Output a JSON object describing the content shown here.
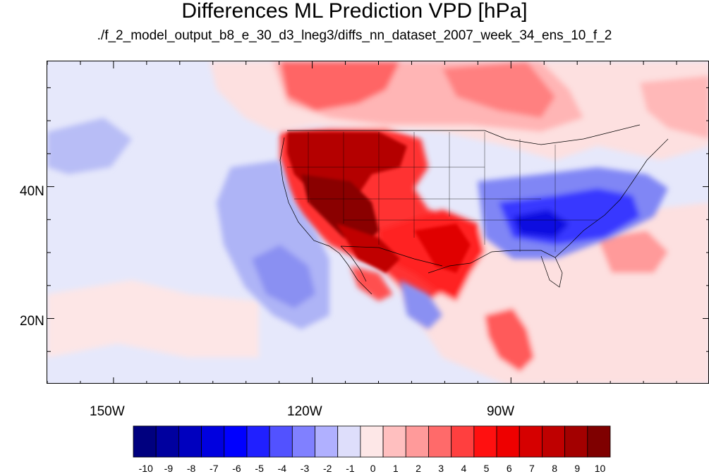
{
  "title": "Differences ML Prediction VPD [hPa]",
  "subtitle": "./f_2_model_output_b8_e_30_d3_lneg3/diffs_nn_dataset_2007_week_34_ens_10_f_2",
  "lat_labels": [
    "40N",
    "20N"
  ],
  "lon_labels": [
    "150W",
    "120W",
    "90W"
  ],
  "colorbar": {
    "tick_labels": [
      "-10",
      "-9",
      "-8",
      "-7",
      "-6",
      "-5",
      "-4",
      "-3",
      "-2",
      "-1",
      "0",
      "1",
      "2",
      "3",
      "4",
      "5",
      "6",
      "7",
      "8",
      "9",
      "10"
    ],
    "colors": [
      "#00007f",
      "#00009f",
      "#0000bf",
      "#0000df",
      "#0000ff",
      "#2020ff",
      "#5252ff",
      "#8080ff",
      "#b0b0ff",
      "#dedefb",
      "#fde7e7",
      "#ffbfbf",
      "#ff9a9a",
      "#ff6a6a",
      "#ff3f3f",
      "#ff1010",
      "#ee0000",
      "#d60000",
      "#bf0000",
      "#a30000",
      "#7f0000"
    ]
  },
  "chart_data": {
    "type": "heatmap",
    "title": "Differences ML Prediction VPD [hPa]",
    "subtitle": "./f_2_model_output_b8_e_30_d3_lneg3/diffs_nn_dataset_2007_week_34_ens_10_f_2",
    "lon_range": [
      -160,
      -60
    ],
    "lat_range": [
      10,
      59
    ],
    "lon_ticks": [
      -150,
      -120,
      -90
    ],
    "lat_ticks": [
      40,
      20
    ],
    "value_range": [
      -10,
      10
    ],
    "contour_interval": 1,
    "regions": [
      {
        "name": "western US",
        "value": 10
      },
      {
        "name": "southern plains / Texas",
        "value": 7
      },
      {
        "name": "Canada north",
        "value": 4
      },
      {
        "name": "southeastern US",
        "value": -5
      },
      {
        "name": "eastern Pacific",
        "value": -2
      },
      {
        "name": "central America / Caribbean",
        "value": 3
      }
    ]
  }
}
